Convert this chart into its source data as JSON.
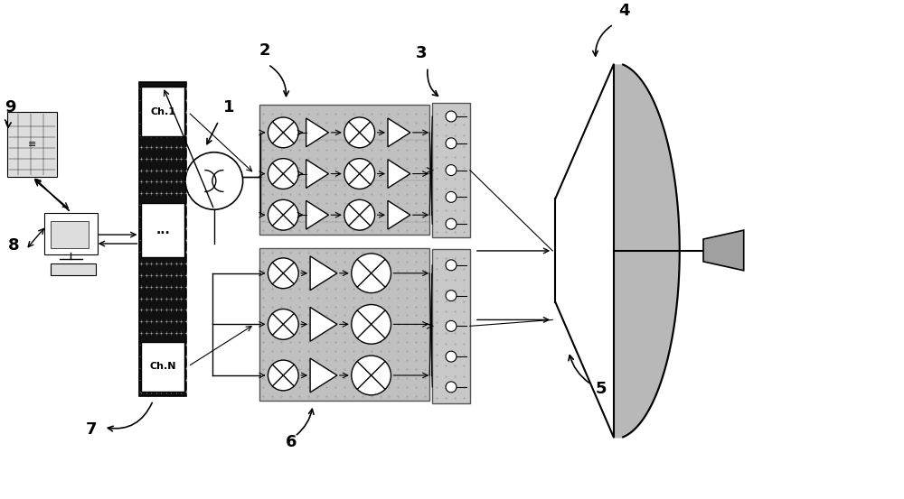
{
  "bg_color": "#ffffff",
  "label_color": "#000000",
  "component_fill_upper": "#e8e8e8",
  "component_fill_lower": "#d0d0d0",
  "dark_box_fill": "#1a1a1a",
  "numbers": [
    "1",
    "2",
    "3",
    "4",
    "5",
    "6",
    "7",
    "8",
    "9"
  ],
  "title": ""
}
